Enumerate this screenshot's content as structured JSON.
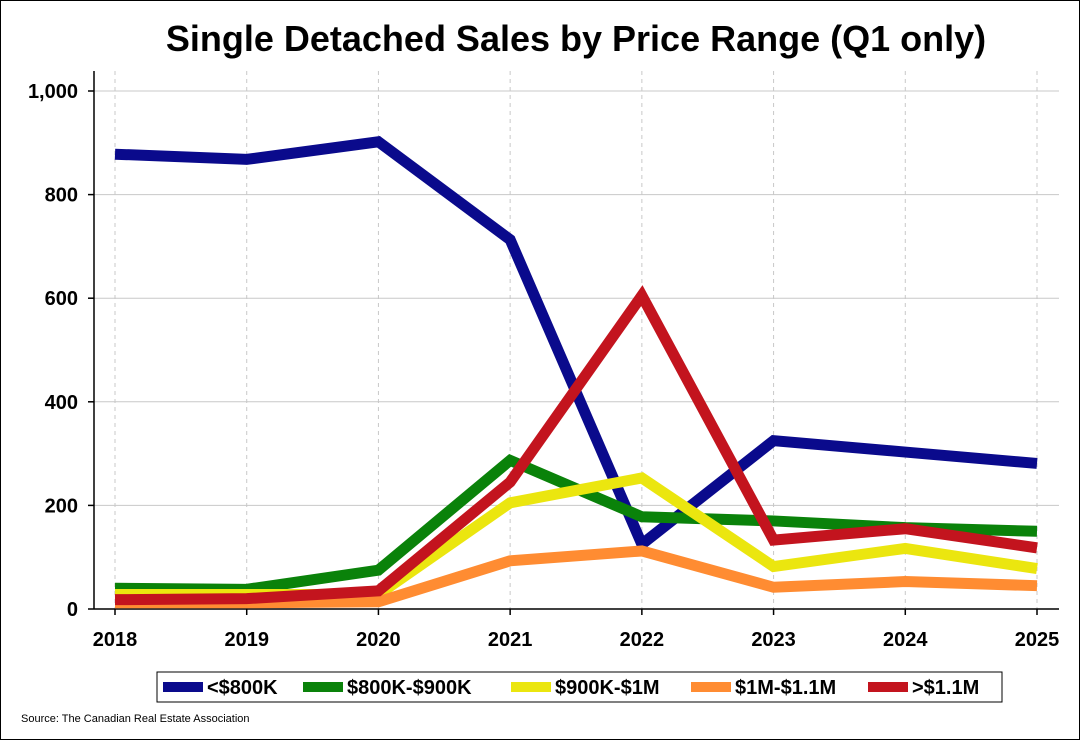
{
  "chart_data": {
    "type": "line",
    "title": "Single Detached Sales by Price Range (Q1 only)",
    "xlabel": "",
    "ylabel": "",
    "x": [
      "2018",
      "2019",
      "2020",
      "2021",
      "2022",
      "2023",
      "2024",
      "2025"
    ],
    "ylim": [
      0,
      1000
    ],
    "yticks": [
      0,
      200,
      400,
      600,
      800,
      1000
    ],
    "ytick_labels": [
      "0",
      "200",
      "400",
      "600",
      "800",
      "1,000"
    ],
    "grid": true,
    "legend_position": "bottom",
    "series": [
      {
        "name": "<$800K",
        "color": "#0a0a8c",
        "values": [
          878,
          868,
          902,
          713,
          125,
          325,
          303,
          281
        ]
      },
      {
        "name": "$800K-$900K",
        "color": "#0a820a",
        "values": [
          40,
          38,
          75,
          287,
          178,
          170,
          157,
          150
        ]
      },
      {
        "name": "$900K-$1M",
        "color": "#ebe60f",
        "values": [
          28,
          28,
          28,
          205,
          253,
          82,
          117,
          78
        ]
      },
      {
        "name": "$1M-$1.1M",
        "color": "#ff8c32",
        "values": [
          12,
          12,
          14,
          93,
          112,
          42,
          53,
          45
        ]
      },
      {
        "name": ">$1.1M",
        "color": "#c3141e",
        "values": [
          18,
          20,
          35,
          245,
          605,
          133,
          155,
          118
        ]
      }
    ],
    "source": "Source: The Canadian Real Estate Association"
  }
}
